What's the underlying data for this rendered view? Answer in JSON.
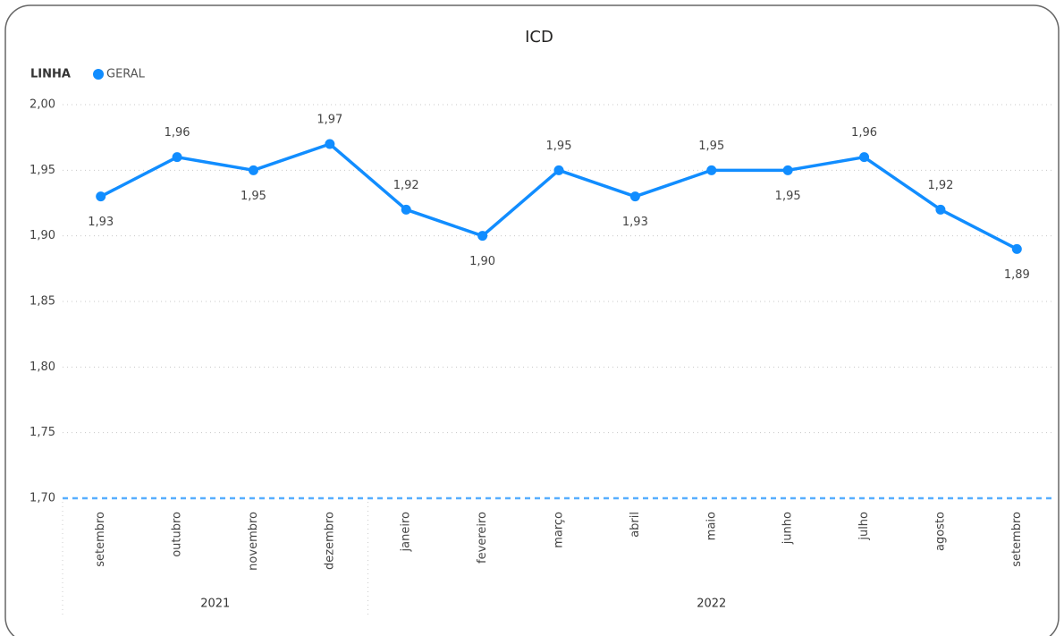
{
  "chart_data": {
    "type": "line",
    "title": "ICD",
    "legend_title": "LINHA",
    "categories": [
      "setembro",
      "outubro",
      "novembro",
      "dezembro",
      "janeiro",
      "fevereiro",
      "março",
      "abril",
      "maio",
      "junho",
      "julho",
      "agosto",
      "setembro"
    ],
    "groups": [
      {
        "label": "2021",
        "size": 4
      },
      {
        "label": "2022",
        "size": 9
      }
    ],
    "series": [
      {
        "name": "GERAL",
        "color": "#118dff",
        "values": [
          1.93,
          1.96,
          1.95,
          1.97,
          1.92,
          1.9,
          1.95,
          1.93,
          1.95,
          1.95,
          1.96,
          1.92,
          1.89
        ],
        "value_labels": [
          "1,93",
          "1,96",
          "1,95",
          "1,97",
          "1,92",
          "1,90",
          "1,95",
          "1,93",
          "1,95",
          "1,95",
          "1,96",
          "1,92",
          "1,89"
        ]
      }
    ],
    "ylim": [
      1.7,
      2.0
    ],
    "yticks": [
      {
        "value": 2.0,
        "label": "2,00"
      },
      {
        "value": 1.95,
        "label": "1,95"
      },
      {
        "value": 1.9,
        "label": "1,90"
      },
      {
        "value": 1.85,
        "label": "1,85"
      },
      {
        "value": 1.8,
        "label": "1,80"
      },
      {
        "value": 1.75,
        "label": "1,75"
      },
      {
        "value": 1.7,
        "label": "1,70"
      }
    ],
    "grid": true
  }
}
